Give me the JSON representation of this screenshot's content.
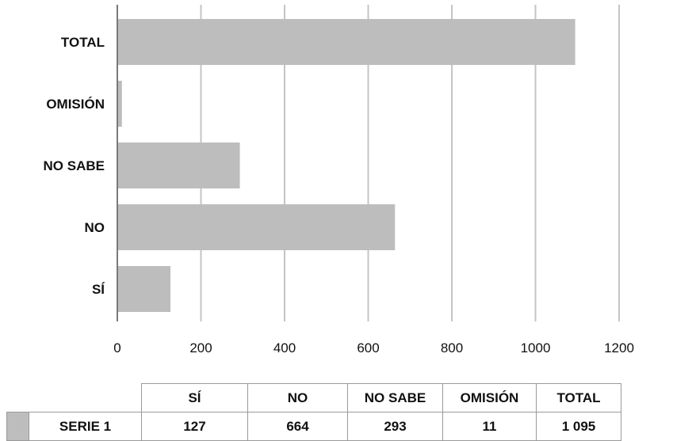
{
  "chart_data": {
    "type": "bar",
    "orientation": "horizontal",
    "categories": [
      "TOTAL",
      "OMISIÓN",
      "NO SABE",
      "NO",
      "SÍ"
    ],
    "series": [
      {
        "name": "SERIE 1",
        "values": [
          1095,
          11,
          293,
          664,
          127
        ]
      }
    ],
    "xlim": [
      0,
      1200
    ],
    "xticks": [
      "0",
      "200",
      "400",
      "600",
      "800",
      "1000",
      "1200"
    ],
    "xtick_values": [
      0,
      200,
      400,
      600,
      800,
      1000,
      1200
    ],
    "grid": true,
    "bar_color": "#bdbdbd",
    "grid_color": "#c4c4c4",
    "legend": "table-bottom"
  },
  "table": {
    "headers": [
      "SÍ",
      "NO",
      "NO SABE",
      "OMISIÓN",
      "TOTAL"
    ],
    "row_label": "SERIE 1",
    "values": [
      "127",
      "664",
      "293",
      "11",
      "1 095"
    ]
  }
}
